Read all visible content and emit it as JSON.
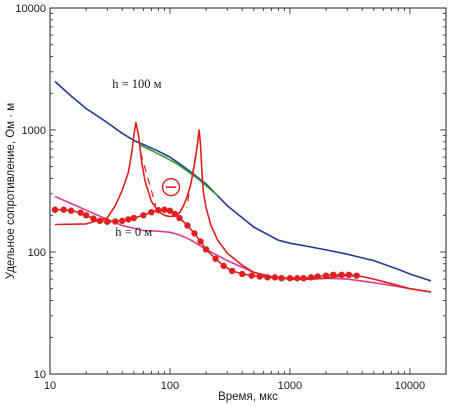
{
  "chart_data": {
    "type": "line",
    "xlabel": "Время, мкс",
    "ylabel": "Удельное сопротивление, Ом · м",
    "x_scale": "log",
    "y_scale": "log",
    "xlim": [
      10,
      20000
    ],
    "ylim": [
      10,
      10000
    ],
    "x_ticks": [
      "10",
      "100",
      "1000",
      "10000"
    ],
    "y_ticks": [
      "10",
      "100",
      "1000",
      "10000"
    ],
    "grid": false,
    "legend": "none",
    "annotations": [
      {
        "text": "h = 100 м",
        "x": 33,
        "y": 2200
      },
      {
        "text": "h = 0 м",
        "x": 35,
        "y": 135
      }
    ],
    "series": [
      {
        "color": "#1f3a93",
        "x": [
          11,
          15,
          20,
          30,
          40,
          50,
          60,
          80,
          100,
          120,
          150,
          200,
          300,
          500,
          800,
          1000,
          1500,
          2000,
          3000,
          5000,
          8000,
          10000,
          15000
        ],
        "y": [
          2500,
          1900,
          1500,
          1150,
          940,
          820,
          760,
          670,
          600,
          530,
          450,
          360,
          240,
          160,
          125,
          118,
          110,
          104,
          96,
          85,
          72,
          66,
          58
        ]
      },
      {
        "color": "#2ca02c",
        "x": [
          55,
          70,
          90,
          110,
          140,
          170,
          200,
          250
        ],
        "y": [
          760,
          680,
          600,
          540,
          460,
          400,
          350,
          290
        ]
      },
      {
        "color": "#e03a8c",
        "x": [
          11,
          15,
          20,
          30,
          40,
          60,
          80,
          100,
          120,
          150,
          200,
          300,
          500,
          700,
          1000,
          1500,
          2000,
          3000,
          5000,
          8000,
          10000,
          15000
        ],
        "y": [
          285,
          250,
          220,
          185,
          165,
          150,
          148,
          145,
          138,
          125,
          105,
          85,
          68,
          62,
          60,
          60,
          61,
          60,
          56,
          52,
          50,
          47
        ]
      },
      {
        "color": "#e02020",
        "x": [
          11,
          20,
          30,
          35,
          40,
          45,
          48,
          50,
          52,
          55,
          58,
          62,
          70,
          80,
          90,
          100,
          110,
          120,
          130,
          140,
          150,
          160,
          170,
          175,
          180,
          185,
          190,
          200,
          220,
          250,
          300,
          400,
          500,
          700,
          1000,
          1500,
          2000,
          2500,
          3000,
          4000,
          5000,
          7000,
          10000,
          15000
        ],
        "y": [
          168,
          170,
          190,
          240,
          320,
          450,
          650,
          900,
          1150,
          880,
          550,
          380,
          260,
          215,
          200,
          195,
          198,
          210,
          240,
          290,
          370,
          520,
          780,
          1000,
          740,
          440,
          310,
          230,
          165,
          125,
          98,
          78,
          68,
          63,
          60,
          60,
          61,
          63,
          64,
          63,
          60,
          55,
          50,
          47
        ]
      },
      {
        "color": "#e02020",
        "x": [
          11,
          13,
          15,
          18,
          20,
          23,
          26,
          30,
          35,
          40,
          45,
          50,
          60,
          70,
          80,
          90,
          100,
          110,
          120,
          140,
          160,
          180,
          200,
          240,
          280,
          330,
          400,
          480,
          560,
          650,
          750,
          850,
          1000,
          1150,
          1300,
          1500,
          1700,
          2000,
          2300,
          2700,
          3100,
          3600
        ],
        "y": [
          222,
          222,
          218,
          210,
          200,
          188,
          180,
          177,
          178,
          180,
          185,
          190,
          200,
          212,
          220,
          222,
          218,
          205,
          190,
          165,
          142,
          122,
          105,
          88,
          77,
          70,
          66,
          64,
          63,
          62,
          62,
          61,
          61,
          61,
          61,
          62,
          63,
          64,
          65,
          65,
          65,
          64
        ]
      }
    ],
    "markers_on_series": [
      4
    ]
  }
}
